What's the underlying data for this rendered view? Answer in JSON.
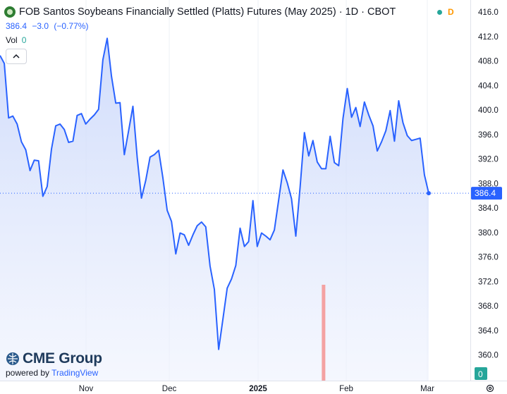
{
  "header": {
    "title": "FOB Santos Soybeans Financially Settled (Platts) Futures (May 2025) · 1D · CBOT",
    "status_letter": "D"
  },
  "quote": {
    "last": "386.4",
    "change": "−3.0",
    "change_pct": "(−0.77%)"
  },
  "volume": {
    "label": "Vol",
    "value": "0"
  },
  "branding": {
    "company": "CME Group",
    "powered_by": "powered by",
    "provider": "TradingView"
  },
  "colors": {
    "line": "#2962ff",
    "fill": "#d6e2fd",
    "volume_bar": "#f4a2a2",
    "last_price_tag": "#2962ff",
    "volume_tag": "#26a69a"
  },
  "chart_data": {
    "type": "area",
    "ylim": [
      358,
      418
    ],
    "y_ticks": [
      "416.0",
      "412.0",
      "408.0",
      "404.0",
      "400.0",
      "396.0",
      "392.0",
      "388.0",
      "384.0",
      "380.0",
      "376.0",
      "372.0",
      "368.0",
      "364.0",
      "360.0"
    ],
    "x_tick_labels": [
      "Nov",
      "Dec",
      "2025",
      "Feb",
      "Mar"
    ],
    "last_value_label": "386.4",
    "volume_axis_label": "0",
    "series": [
      {
        "values": [
          408.9,
          407.6,
          398.7,
          399.0,
          397.7,
          394.8,
          393.5,
          390.1,
          391.8,
          391.7,
          385.9,
          387.5,
          393.6,
          397.4,
          397.7,
          396.8,
          394.7,
          394.9,
          399.1,
          399.4,
          397.7,
          398.5,
          399.2,
          400.1,
          408.2,
          411.7,
          405.5,
          401.1,
          401.2,
          392.7,
          396.6,
          400.6,
          392.2,
          385.6,
          388.5,
          392.3,
          392.7,
          393.4,
          388.9,
          383.6,
          381.8,
          376.5,
          379.9,
          379.6,
          377.9,
          379.6,
          381.1,
          381.7,
          380.9,
          374.5,
          370.7,
          360.9,
          365.9,
          370.9,
          372.4,
          374.6,
          380.7,
          377.7,
          378.5,
          385.2,
          377.7,
          379.9,
          379.4,
          378.8,
          380.4,
          385.3,
          390.2,
          388.1,
          385.5,
          379.4,
          387.4,
          396.3,
          392.5,
          395.0,
          391.5,
          390.4,
          390.4,
          395.7,
          391.4,
          390.9,
          398.6,
          403.5,
          398.8,
          400.4,
          397.3,
          401.3,
          399.2,
          397.4,
          393.3,
          394.8,
          396.6,
          399.9,
          394.9,
          401.5,
          397.9,
          395.8,
          395.0,
          395.2,
          395.4,
          389.4,
          386.4
        ]
      }
    ],
    "volume": [
      {
        "label": "spike",
        "value": 1,
        "position_fraction": 0.7547
      }
    ]
  }
}
